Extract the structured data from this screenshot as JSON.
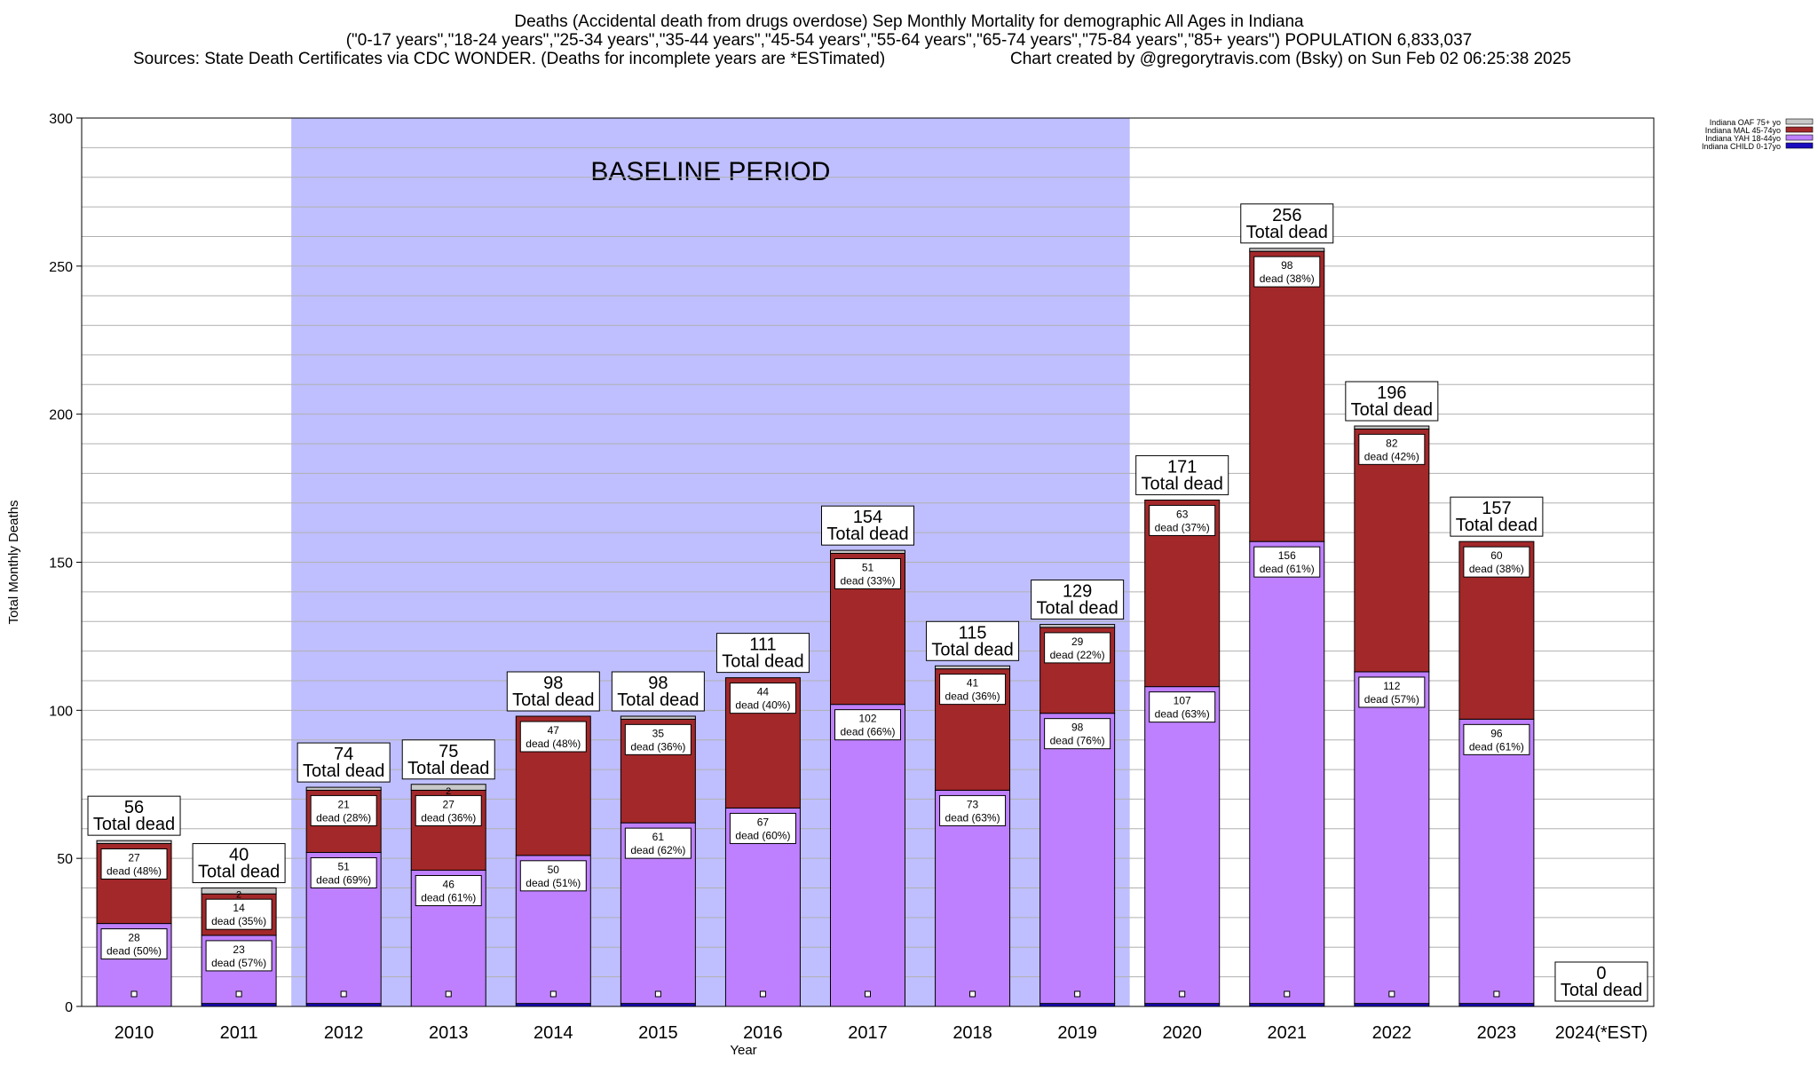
{
  "header": {
    "line1": "Deaths (Accidental death from drugs overdose) Sep Monthly Mortality for demographic All Ages in Indiana",
    "line2": "(\"0-17 years\",\"18-24 years\",\"25-34 years\",\"35-44 years\",\"45-54 years\",\"55-64 years\",\"65-74 years\",\"75-84 years\",\"85+ years\") POPULATION 6,833,037",
    "line3_left": "Sources: State Death Certificates via CDC WONDER. (Deaths for incomplete years are *ESTimated)",
    "line3_right": "Chart created by @gregorytravis.com (Bsky) on Sun Feb 02 06:25:38 2025"
  },
  "chart_data": {
    "type": "bar",
    "stacked": true,
    "xlabel": "Year",
    "ylabel": "Total Monthly Deaths",
    "ylim": [
      0,
      300
    ],
    "yticks": [
      "0",
      "50",
      "100",
      "150",
      "200",
      "250",
      "300"
    ],
    "grid": true,
    "legend_position": "top-right",
    "baseline": {
      "label": "BASELINE PERIOD",
      "start": "2012",
      "end": "2019",
      "color": "#bfbfff"
    },
    "categories": [
      "2010",
      "2011",
      "2012",
      "2013",
      "2014",
      "2015",
      "2016",
      "2017",
      "2018",
      "2019",
      "2020",
      "2021",
      "2022",
      "2023",
      "2024(*EST)"
    ],
    "totals": [
      56,
      40,
      74,
      75,
      98,
      98,
      111,
      154,
      115,
      129,
      171,
      256,
      196,
      157,
      0
    ],
    "total_label": "Total dead",
    "series": [
      {
        "name": "Indiana CHILD 0-17yo",
        "color": "#1a0dbf",
        "values": [
          0,
          1,
          1,
          0,
          1,
          1,
          0,
          0,
          0,
          1,
          1,
          1,
          1,
          1,
          0
        ]
      },
      {
        "name": "Indiana YAH 18-44yo",
        "color": "#bf80ff",
        "values": [
          28,
          23,
          51,
          46,
          50,
          61,
          67,
          102,
          73,
          98,
          107,
          156,
          112,
          96,
          0
        ],
        "labels": [
          "28",
          "23",
          "51",
          "46",
          "50",
          "61",
          "67",
          "102",
          "73",
          "98",
          "107",
          "156",
          "112",
          "96",
          ""
        ],
        "pct": [
          "dead (50%)",
          "dead (57%)",
          "dead (69%)",
          "dead (61%)",
          "dead (51%)",
          "dead (62%)",
          "dead (60%)",
          "dead (66%)",
          "dead (63%)",
          "dead (76%)",
          "dead (63%)",
          "dead (61%)",
          "dead (57%)",
          "dead (61%)",
          ""
        ]
      },
      {
        "name": "Indiana MAL 45-74yo",
        "color": "#a3282a",
        "values": [
          27,
          14,
          21,
          27,
          47,
          35,
          44,
          51,
          41,
          29,
          63,
          98,
          82,
          60,
          0
        ],
        "labels": [
          "27",
          "14",
          "21",
          "27",
          "47",
          "35",
          "44",
          "51",
          "41",
          "29",
          "63",
          "98",
          "82",
          "60",
          ""
        ],
        "pct": [
          "dead (48%)",
          "dead (35%)",
          "dead (28%)",
          "dead (36%)",
          "dead (48%)",
          "dead (36%)",
          "dead (40%)",
          "dead (33%)",
          "dead (36%)",
          "dead (22%)",
          "dead (37%)",
          "dead (38%)",
          "dead (42%)",
          "dead (38%)",
          ""
        ]
      },
      {
        "name": "Indiana OAF 75+ yo",
        "color": "#c8c8c8",
        "values": [
          1,
          2,
          1,
          2,
          0,
          1,
          0,
          1,
          1,
          1,
          0,
          1,
          1,
          0,
          0
        ],
        "visible_labels": [
          "",
          "2",
          "",
          "2",
          "",
          "",
          "",
          "",
          "",
          "",
          "",
          "",
          "",
          "",
          ""
        ]
      }
    ]
  }
}
